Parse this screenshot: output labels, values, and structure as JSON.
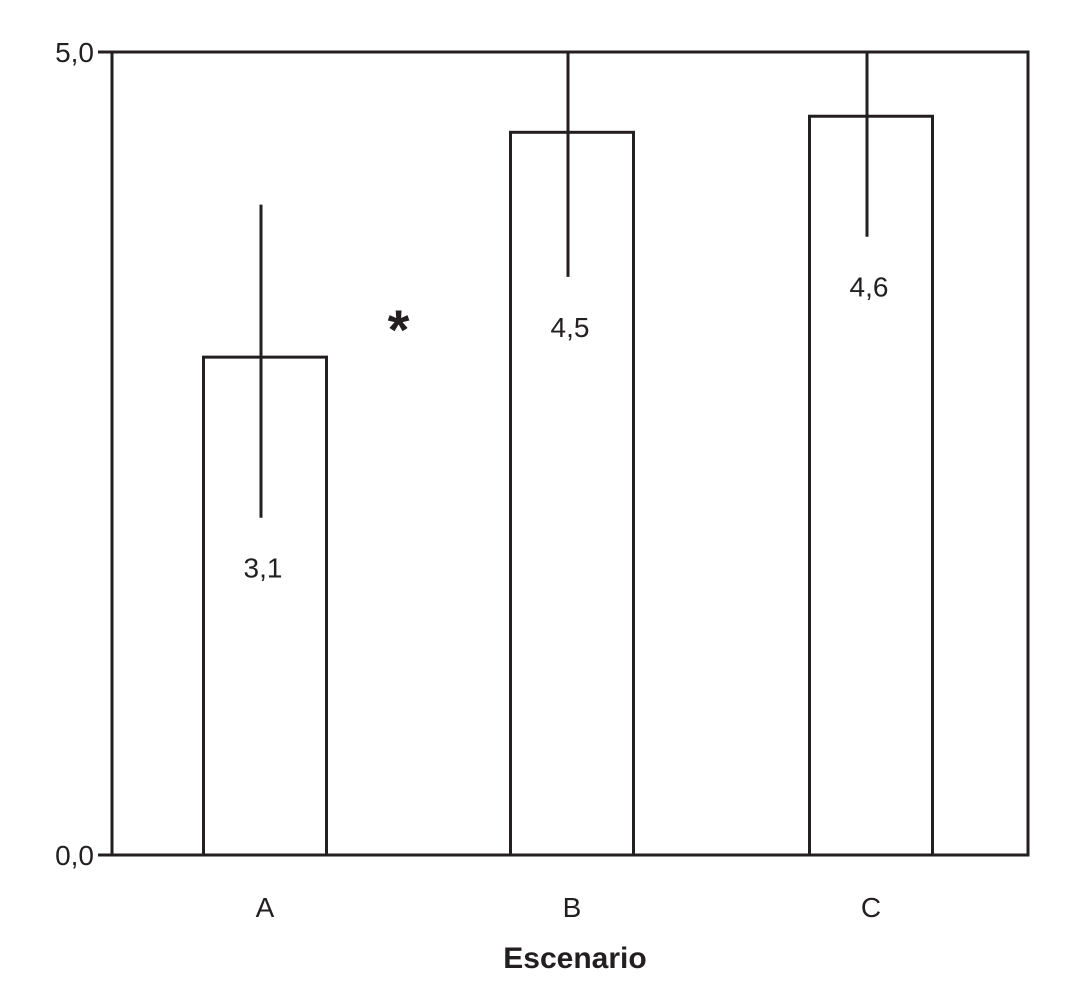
{
  "chart_data": {
    "type": "bar",
    "title": "",
    "xlabel": "Escenario",
    "ylabel": "",
    "categories": [
      "A",
      "B",
      "C"
    ],
    "values": [
      3.1,
      4.5,
      4.6
    ],
    "value_labels": [
      "3,1",
      "4,5",
      "4,6"
    ],
    "error_bars": [
      {
        "low": 2.1,
        "high": 4.05
      },
      {
        "low": 3.6,
        "high": 5.0
      },
      {
        "low": 3.85,
        "high": 5.0
      }
    ],
    "ylim": [
      0,
      5
    ],
    "y_ticks": [
      {
        "value": 0,
        "label": "0,0"
      },
      {
        "value": 5,
        "label": "5,0"
      }
    ],
    "annotations": [
      {
        "text": "*",
        "between": [
          "A",
          "B"
        ],
        "at_value": 3.4
      }
    ],
    "grid": false,
    "legend": "none",
    "colors": {
      "ink": "#231f20",
      "bar_fill": "#ffffff"
    }
  }
}
